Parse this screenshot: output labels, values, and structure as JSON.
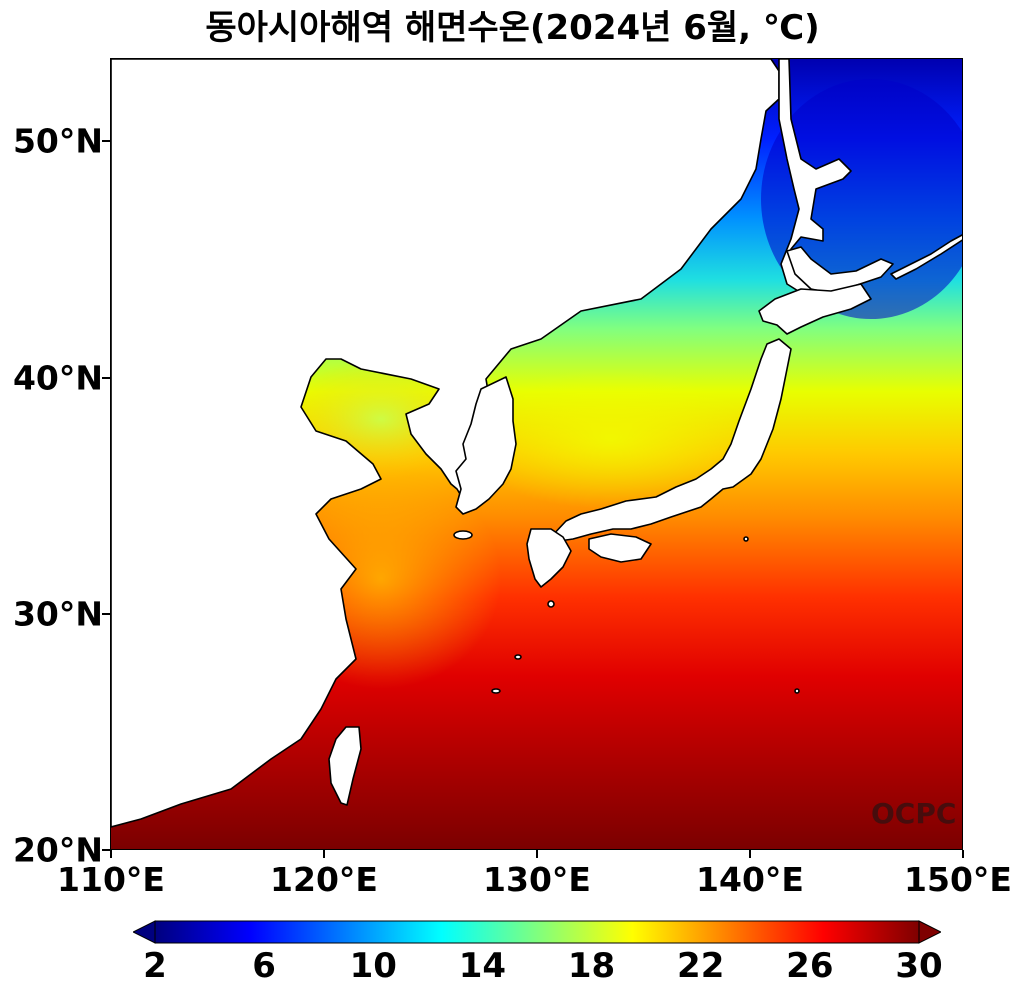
{
  "title": "동아시아해역 해면수온(2024년 6월, ℃)",
  "logo_text": "OCPC",
  "map": {
    "lon_range": [
      110,
      150
    ],
    "lat_range": [
      20,
      53.5
    ],
    "x_ticks": [
      "110°E",
      "120°E",
      "130°E",
      "140°E",
      "150°E"
    ],
    "y_ticks": [
      "20°N",
      "30°N",
      "40°N",
      "50°N"
    ],
    "land_color": "#ffffff",
    "coastline_color": "#000000"
  },
  "colorbar": {
    "min": 2,
    "max": 30,
    "labels": [
      "2",
      "6",
      "10",
      "14",
      "18",
      "22",
      "26",
      "30"
    ],
    "colors": [
      "#00007f",
      "#0000ff",
      "#007fff",
      "#00ffff",
      "#7fff7f",
      "#ffff00",
      "#ff7f00",
      "#ff0000",
      "#7f0000"
    ],
    "extend": "both"
  }
}
